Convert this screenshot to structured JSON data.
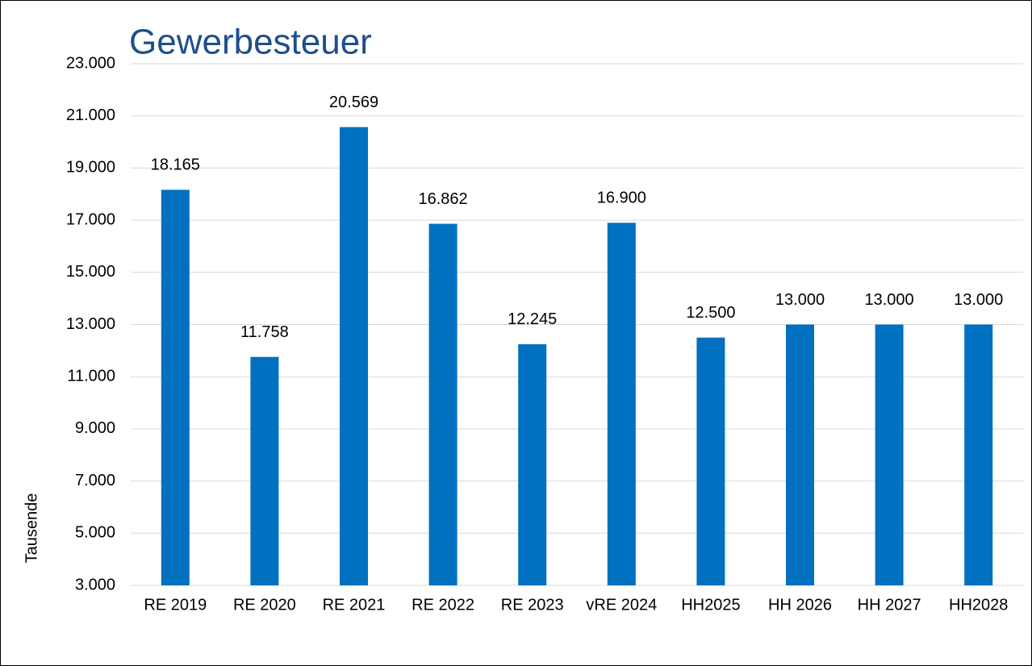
{
  "chart_data": {
    "type": "bar",
    "title": "Gewerbesteuer",
    "y_label": "Tausende",
    "categories": [
      "RE 2019",
      "RE 2020",
      "RE 2021",
      "RE 2022",
      "RE 2023",
      "vRE 2024",
      "HH2025",
      "HH 2026",
      "HH 2027",
      "HH2028"
    ],
    "values": [
      18165,
      11758,
      20569,
      16862,
      12245,
      16900,
      12500,
      13000,
      13000,
      13000
    ],
    "value_labels": [
      "18.165",
      "11.758",
      "20.569",
      "16.862",
      "12.245",
      "16.900",
      "12.500",
      "13.000",
      "13.000",
      "13.000"
    ],
    "color": "#0070c0",
    "ylim": [
      3000,
      23000
    ],
    "yticks": [
      {
        "value": 3000,
        "label": "3.000"
      },
      {
        "value": 5000,
        "label": "5.000"
      },
      {
        "value": 7000,
        "label": "7.000"
      },
      {
        "value": 9000,
        "label": "9.000"
      },
      {
        "value": 11000,
        "label": "11.000"
      },
      {
        "value": 13000,
        "label": "13.000"
      },
      {
        "value": 15000,
        "label": "15.000"
      },
      {
        "value": 17000,
        "label": "17.000"
      },
      {
        "value": 19000,
        "label": "19.000"
      },
      {
        "value": 21000,
        "label": "21.000"
      },
      {
        "value": 23000,
        "label": "23.000"
      }
    ],
    "grid": true
  }
}
